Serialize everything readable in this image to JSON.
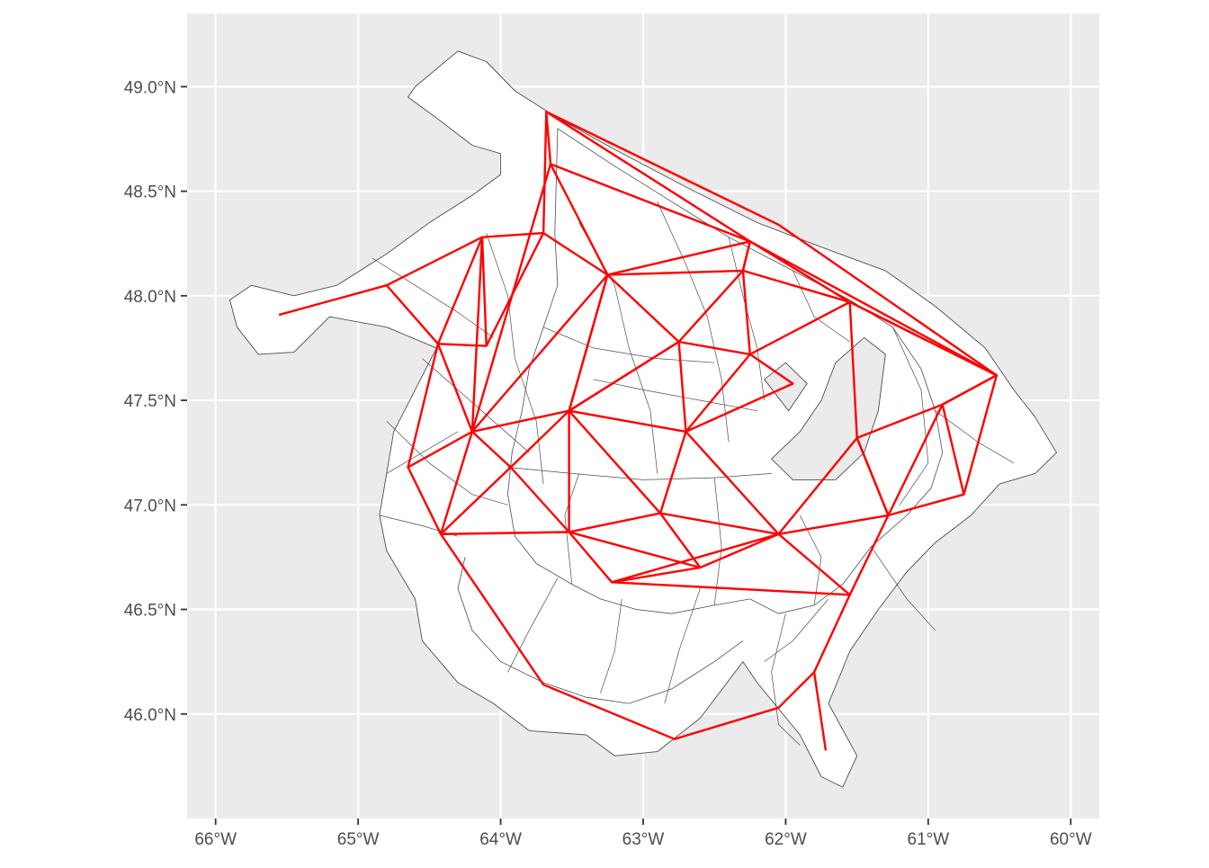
{
  "chart_data": {
    "type": "map",
    "projection": "lon-lat",
    "xlim": [
      -66.2,
      -59.8
    ],
    "ylim": [
      45.5,
      49.35
    ],
    "grid": true,
    "background_color": "#EBEBEB",
    "grid_color": "#FFFFFF",
    "land_fill": "#FFFFFF",
    "land_stroke": "#4D4D4D",
    "network_color": "#FF0000",
    "x_ticks": [
      {
        "value": -66,
        "label": "66°W"
      },
      {
        "value": -65,
        "label": "65°W"
      },
      {
        "value": -64,
        "label": "64°W"
      },
      {
        "value": -63,
        "label": "63°W"
      },
      {
        "value": -62,
        "label": "62°W"
      },
      {
        "value": -61,
        "label": "61°W"
      },
      {
        "value": -60,
        "label": "60°W"
      }
    ],
    "y_ticks": [
      {
        "value": 46.0,
        "label": "46.0°N"
      },
      {
        "value": 46.5,
        "label": "46.5°N"
      },
      {
        "value": 47.0,
        "label": "47.0°N"
      },
      {
        "value": 47.5,
        "label": "47.5°N"
      },
      {
        "value": 48.0,
        "label": "48.0°N"
      },
      {
        "value": 48.5,
        "label": "48.5°N"
      },
      {
        "value": 49.0,
        "label": "49.0°N"
      }
    ],
    "land_outline": [
      [
        -64.6,
        49.0
      ],
      [
        -64.3,
        49.17
      ],
      [
        -64.1,
        49.12
      ],
      [
        -63.9,
        48.98
      ],
      [
        -63.6,
        48.85
      ],
      [
        -63.2,
        48.7
      ],
      [
        -62.7,
        48.52
      ],
      [
        -62.2,
        48.35
      ],
      [
        -61.7,
        48.22
      ],
      [
        -61.3,
        48.12
      ],
      [
        -60.95,
        47.95
      ],
      [
        -60.6,
        47.75
      ],
      [
        -60.4,
        47.55
      ],
      [
        -60.25,
        47.42
      ],
      [
        -60.1,
        47.25
      ],
      [
        -60.25,
        47.15
      ],
      [
        -60.5,
        47.1
      ],
      [
        -60.7,
        46.95
      ],
      [
        -60.95,
        46.82
      ],
      [
        -61.15,
        46.68
      ],
      [
        -61.35,
        46.5
      ],
      [
        -61.55,
        46.3
      ],
      [
        -61.7,
        46.05
      ],
      [
        -61.5,
        45.8
      ],
      [
        -61.6,
        45.65
      ],
      [
        -61.75,
        45.7
      ],
      [
        -61.9,
        45.9
      ],
      [
        -62.2,
        46.15
      ],
      [
        -62.3,
        46.25
      ],
      [
        -62.6,
        45.98
      ],
      [
        -62.9,
        45.82
      ],
      [
        -63.2,
        45.8
      ],
      [
        -63.4,
        45.9
      ],
      [
        -63.8,
        45.92
      ],
      [
        -64.05,
        46.05
      ],
      [
        -64.3,
        46.15
      ],
      [
        -64.55,
        46.35
      ],
      [
        -64.6,
        46.55
      ],
      [
        -64.8,
        46.78
      ],
      [
        -64.85,
        46.95
      ],
      [
        -64.8,
        47.15
      ],
      [
        -64.75,
        47.35
      ],
      [
        -64.6,
        47.55
      ],
      [
        -64.45,
        47.75
      ],
      [
        -64.8,
        47.85
      ],
      [
        -65.2,
        47.9
      ],
      [
        -65.45,
        47.73
      ],
      [
        -65.7,
        47.72
      ],
      [
        -65.85,
        47.85
      ],
      [
        -65.9,
        47.98
      ],
      [
        -65.75,
        48.05
      ],
      [
        -65.45,
        48.0
      ],
      [
        -65.15,
        48.05
      ],
      [
        -64.8,
        48.2
      ],
      [
        -64.5,
        48.35
      ],
      [
        -64.2,
        48.48
      ],
      [
        -64.0,
        48.58
      ],
      [
        -64.0,
        48.68
      ],
      [
        -64.2,
        48.72
      ],
      [
        -64.45,
        48.85
      ],
      [
        -64.65,
        48.95
      ],
      [
        -64.6,
        49.0
      ]
    ],
    "inner_coast_a": [
      [
        -63.6,
        48.8
      ],
      [
        -63.2,
        48.62
      ],
      [
        -62.8,
        48.45
      ],
      [
        -62.4,
        48.28
      ],
      [
        -61.95,
        48.12
      ],
      [
        -61.55,
        47.98
      ],
      [
        -61.25,
        47.85
      ],
      [
        -61.05,
        47.65
      ],
      [
        -60.95,
        47.45
      ],
      [
        -60.9,
        47.25
      ],
      [
        -60.98,
        47.08
      ],
      [
        -61.15,
        46.95
      ],
      [
        -61.4,
        46.8
      ],
      [
        -61.6,
        46.62
      ],
      [
        -61.8,
        46.52
      ],
      [
        -62.05,
        46.48
      ],
      [
        -62.25,
        46.55
      ],
      [
        -62.5,
        46.52
      ],
      [
        -62.8,
        46.48
      ],
      [
        -63.05,
        46.5
      ],
      [
        -63.3,
        46.55
      ],
      [
        -63.5,
        46.62
      ],
      [
        -63.75,
        46.72
      ],
      [
        -63.9,
        46.85
      ],
      [
        -63.95,
        47.05
      ],
      [
        -63.92,
        47.25
      ],
      [
        -63.85,
        47.45
      ],
      [
        -63.8,
        47.65
      ],
      [
        -63.7,
        47.85
      ],
      [
        -63.6,
        48.05
      ],
      [
        -63.62,
        48.3
      ],
      [
        -63.6,
        48.8
      ]
    ],
    "inner_coast_b": [
      [
        -62.3,
        46.35
      ],
      [
        -62.5,
        46.25
      ],
      [
        -62.8,
        46.12
      ],
      [
        -63.1,
        46.05
      ],
      [
        -63.4,
        46.08
      ],
      [
        -63.7,
        46.15
      ],
      [
        -64.0,
        46.25
      ],
      [
        -64.2,
        46.4
      ],
      [
        -64.3,
        46.6
      ],
      [
        -64.25,
        46.75
      ]
    ],
    "bays": [
      [
        [
          -62.1,
          47.22
        ],
        [
          -61.9,
          47.35
        ],
        [
          -61.75,
          47.5
        ],
        [
          -61.65,
          47.68
        ],
        [
          -61.45,
          47.8
        ],
        [
          -61.3,
          47.72
        ],
        [
          -61.35,
          47.45
        ],
        [
          -61.45,
          47.25
        ],
        [
          -61.65,
          47.12
        ],
        [
          -61.95,
          47.12
        ],
        [
          -62.1,
          47.22
        ]
      ],
      [
        [
          -62.15,
          47.6
        ],
        [
          -61.98,
          47.45
        ],
        [
          -61.85,
          47.58
        ],
        [
          -62.0,
          47.68
        ],
        [
          -62.15,
          47.6
        ]
      ]
    ],
    "internal_boundaries": [
      [
        [
          -64.9,
          48.18
        ],
        [
          -64.6,
          48.05
        ],
        [
          -64.3,
          47.92
        ],
        [
          -64.05,
          47.8
        ]
      ],
      [
        [
          -64.1,
          48.3
        ],
        [
          -63.95,
          48.0
        ],
        [
          -63.9,
          47.7
        ],
        [
          -63.75,
          47.4
        ],
        [
          -63.7,
          47.1
        ]
      ],
      [
        [
          -64.55,
          47.7
        ],
        [
          -64.3,
          47.55
        ],
        [
          -64.05,
          47.4
        ],
        [
          -63.8,
          47.25
        ]
      ],
      [
        [
          -64.8,
          47.4
        ],
        [
          -64.5,
          47.2
        ],
        [
          -64.2,
          47.05
        ],
        [
          -63.95,
          47.0
        ]
      ],
      [
        [
          -63.95,
          47.18
        ],
        [
          -63.5,
          47.15
        ],
        [
          -63.0,
          47.12
        ],
        [
          -62.5,
          47.13
        ],
        [
          -62.1,
          47.15
        ]
      ],
      [
        [
          -63.45,
          48.35
        ],
        [
          -63.2,
          48.05
        ],
        [
          -63.1,
          47.75
        ],
        [
          -62.95,
          47.45
        ],
        [
          -62.9,
          47.15
        ]
      ],
      [
        [
          -62.9,
          48.45
        ],
        [
          -62.7,
          48.15
        ],
        [
          -62.55,
          47.9
        ],
        [
          -62.45,
          47.6
        ],
        [
          -62.4,
          47.3
        ]
      ],
      [
        [
          -62.4,
          48.28
        ],
        [
          -62.3,
          48.0
        ],
        [
          -62.2,
          47.75
        ],
        [
          -62.15,
          47.5
        ]
      ],
      [
        [
          -63.35,
          47.6
        ],
        [
          -63.0,
          47.55
        ],
        [
          -62.6,
          47.5
        ],
        [
          -62.2,
          47.45
        ]
      ],
      [
        [
          -63.7,
          47.85
        ],
        [
          -63.35,
          47.75
        ],
        [
          -62.9,
          47.7
        ],
        [
          -62.5,
          47.68
        ]
      ],
      [
        [
          -61.95,
          48.12
        ],
        [
          -61.8,
          47.9
        ],
        [
          -61.55,
          47.78
        ]
      ],
      [
        [
          -61.25,
          47.85
        ],
        [
          -61.05,
          47.55
        ],
        [
          -61.0,
          47.2
        ],
        [
          -61.2,
          47.0
        ]
      ],
      [
        [
          -60.95,
          47.45
        ],
        [
          -60.65,
          47.3
        ],
        [
          -60.4,
          47.2
        ]
      ],
      [
        [
          -61.4,
          46.8
        ],
        [
          -61.15,
          46.55
        ],
        [
          -60.95,
          46.4
        ]
      ],
      [
        [
          -61.7,
          46.55
        ],
        [
          -61.95,
          46.35
        ],
        [
          -62.15,
          46.25
        ]
      ],
      [
        [
          -62.0,
          46.48
        ],
        [
          -62.1,
          46.2
        ],
        [
          -62.05,
          45.95
        ],
        [
          -61.9,
          45.85
        ]
      ],
      [
        [
          -62.6,
          46.6
        ],
        [
          -62.75,
          46.3
        ],
        [
          -62.85,
          46.05
        ]
      ],
      [
        [
          -63.15,
          46.55
        ],
        [
          -63.2,
          46.3
        ],
        [
          -63.3,
          46.1
        ]
      ],
      [
        [
          -63.6,
          46.65
        ],
        [
          -63.8,
          46.4
        ],
        [
          -63.95,
          46.2
        ]
      ],
      [
        [
          -64.85,
          46.95
        ],
        [
          -64.55,
          46.9
        ],
        [
          -64.3,
          46.85
        ]
      ],
      [
        [
          -64.8,
          47.15
        ],
        [
          -64.55,
          47.25
        ],
        [
          -64.3,
          47.35
        ]
      ],
      [
        [
          -63.5,
          46.62
        ],
        [
          -63.55,
          46.95
        ],
        [
          -63.45,
          47.15
        ]
      ],
      [
        [
          -62.5,
          46.52
        ],
        [
          -62.45,
          46.8
        ],
        [
          -62.5,
          47.13
        ]
      ],
      [
        [
          -61.8,
          46.52
        ],
        [
          -61.75,
          46.75
        ],
        [
          -61.9,
          46.95
        ]
      ]
    ],
    "network_edges": [
      [
        [
          -65.55,
          47.91
        ],
        [
          -64.8,
          48.05
        ],
        [
          -64.13,
          48.28
        ],
        [
          -63.7,
          48.3
        ],
        [
          -63.68,
          48.88
        ],
        [
          -62.05,
          48.34
        ],
        [
          -60.52,
          47.62
        ]
      ],
      [
        [
          -63.68,
          48.88
        ],
        [
          -62.25,
          48.26
        ],
        [
          -60.52,
          47.62
        ]
      ],
      [
        [
          -63.68,
          48.88
        ],
        [
          -63.65,
          48.63
        ],
        [
          -62.25,
          48.26
        ],
        [
          -61.55,
          47.97
        ],
        [
          -60.52,
          47.62
        ]
      ],
      [
        [
          -63.65,
          48.63
        ],
        [
          -63.25,
          48.1
        ],
        [
          -62.25,
          48.26
        ],
        [
          -62.3,
          48.12
        ],
        [
          -63.25,
          48.1
        ]
      ],
      [
        [
          -63.7,
          48.3
        ],
        [
          -63.25,
          48.1
        ]
      ],
      [
        [
          -63.7,
          48.3
        ],
        [
          -64.1,
          47.76
        ],
        [
          -64.13,
          48.28
        ],
        [
          -64.44,
          47.77
        ],
        [
          -64.1,
          47.76
        ]
      ],
      [
        [
          -63.65,
          48.63
        ],
        [
          -64.2,
          47.35
        ],
        [
          -63.25,
          48.1
        ],
        [
          -63.52,
          47.45
        ]
      ],
      [
        [
          -64.8,
          48.05
        ],
        [
          -64.44,
          47.77
        ],
        [
          -64.2,
          47.35
        ],
        [
          -64.13,
          48.28
        ]
      ],
      [
        [
          -64.44,
          47.77
        ],
        [
          -64.65,
          47.18
        ],
        [
          -64.42,
          46.86
        ],
        [
          -64.2,
          47.35
        ]
      ],
      [
        [
          -64.65,
          47.18
        ],
        [
          -64.2,
          47.35
        ]
      ],
      [
        [
          -64.42,
          46.86
        ],
        [
          -63.93,
          47.18
        ],
        [
          -64.2,
          47.35
        ],
        [
          -63.52,
          47.45
        ],
        [
          -63.52,
          46.87
        ]
      ],
      [
        [
          -64.42,
          46.86
        ],
        [
          -63.52,
          46.87
        ],
        [
          -63.93,
          47.18
        ],
        [
          -63.52,
          47.45
        ]
      ],
      [
        [
          -63.25,
          48.1
        ],
        [
          -62.75,
          47.78
        ],
        [
          -62.3,
          48.12
        ],
        [
          -62.25,
          48.26
        ]
      ],
      [
        [
          -62.3,
          48.12
        ],
        [
          -61.55,
          47.97
        ],
        [
          -62.25,
          47.72
        ],
        [
          -62.3,
          48.12
        ]
      ],
      [
        [
          -62.75,
          47.78
        ],
        [
          -62.25,
          47.72
        ],
        [
          -62.7,
          47.35
        ],
        [
          -62.75,
          47.78
        ],
        [
          -63.52,
          47.45
        ],
        [
          -62.7,
          47.35
        ],
        [
          -61.95,
          47.58
        ],
        [
          -62.25,
          47.72
        ]
      ],
      [
        [
          -63.25,
          48.1
        ],
        [
          -63.52,
          47.45
        ],
        [
          -62.75,
          47.78
        ]
      ],
      [
        [
          -63.52,
          47.45
        ],
        [
          -62.88,
          46.96
        ],
        [
          -62.7,
          47.35
        ],
        [
          -62.05,
          46.86
        ],
        [
          -62.88,
          46.96
        ],
        [
          -63.52,
          46.87
        ],
        [
          -62.6,
          46.7
        ],
        [
          -63.22,
          46.63
        ],
        [
          -63.52,
          46.87
        ]
      ],
      [
        [
          -63.22,
          46.63
        ],
        [
          -62.05,
          46.86
        ],
        [
          -61.55,
          46.57
        ],
        [
          -63.22,
          46.63
        ]
      ],
      [
        [
          -62.88,
          46.96
        ],
        [
          -62.6,
          46.7
        ],
        [
          -62.05,
          46.86
        ],
        [
          -61.28,
          46.95
        ],
        [
          -61.5,
          47.32
        ],
        [
          -62.05,
          46.86
        ]
      ],
      [
        [
          -61.55,
          47.97
        ],
        [
          -61.5,
          47.32
        ],
        [
          -60.9,
          47.48
        ],
        [
          -60.52,
          47.62
        ],
        [
          -61.55,
          47.97
        ]
      ],
      [
        [
          -61.5,
          47.32
        ],
        [
          -61.28,
          46.95
        ],
        [
          -60.75,
          47.05
        ],
        [
          -60.52,
          47.62
        ],
        [
          -60.9,
          47.48
        ],
        [
          -60.75,
          47.05
        ]
      ],
      [
        [
          -60.9,
          47.48
        ],
        [
          -61.28,
          46.95
        ],
        [
          -61.55,
          46.57
        ],
        [
          -61.8,
          46.2
        ],
        [
          -61.72,
          45.83
        ]
      ],
      [
        [
          -61.8,
          46.2
        ],
        [
          -62.05,
          46.03
        ],
        [
          -62.78,
          45.88
        ],
        [
          -63.7,
          46.14
        ],
        [
          -64.42,
          46.86
        ]
      ]
    ]
  }
}
